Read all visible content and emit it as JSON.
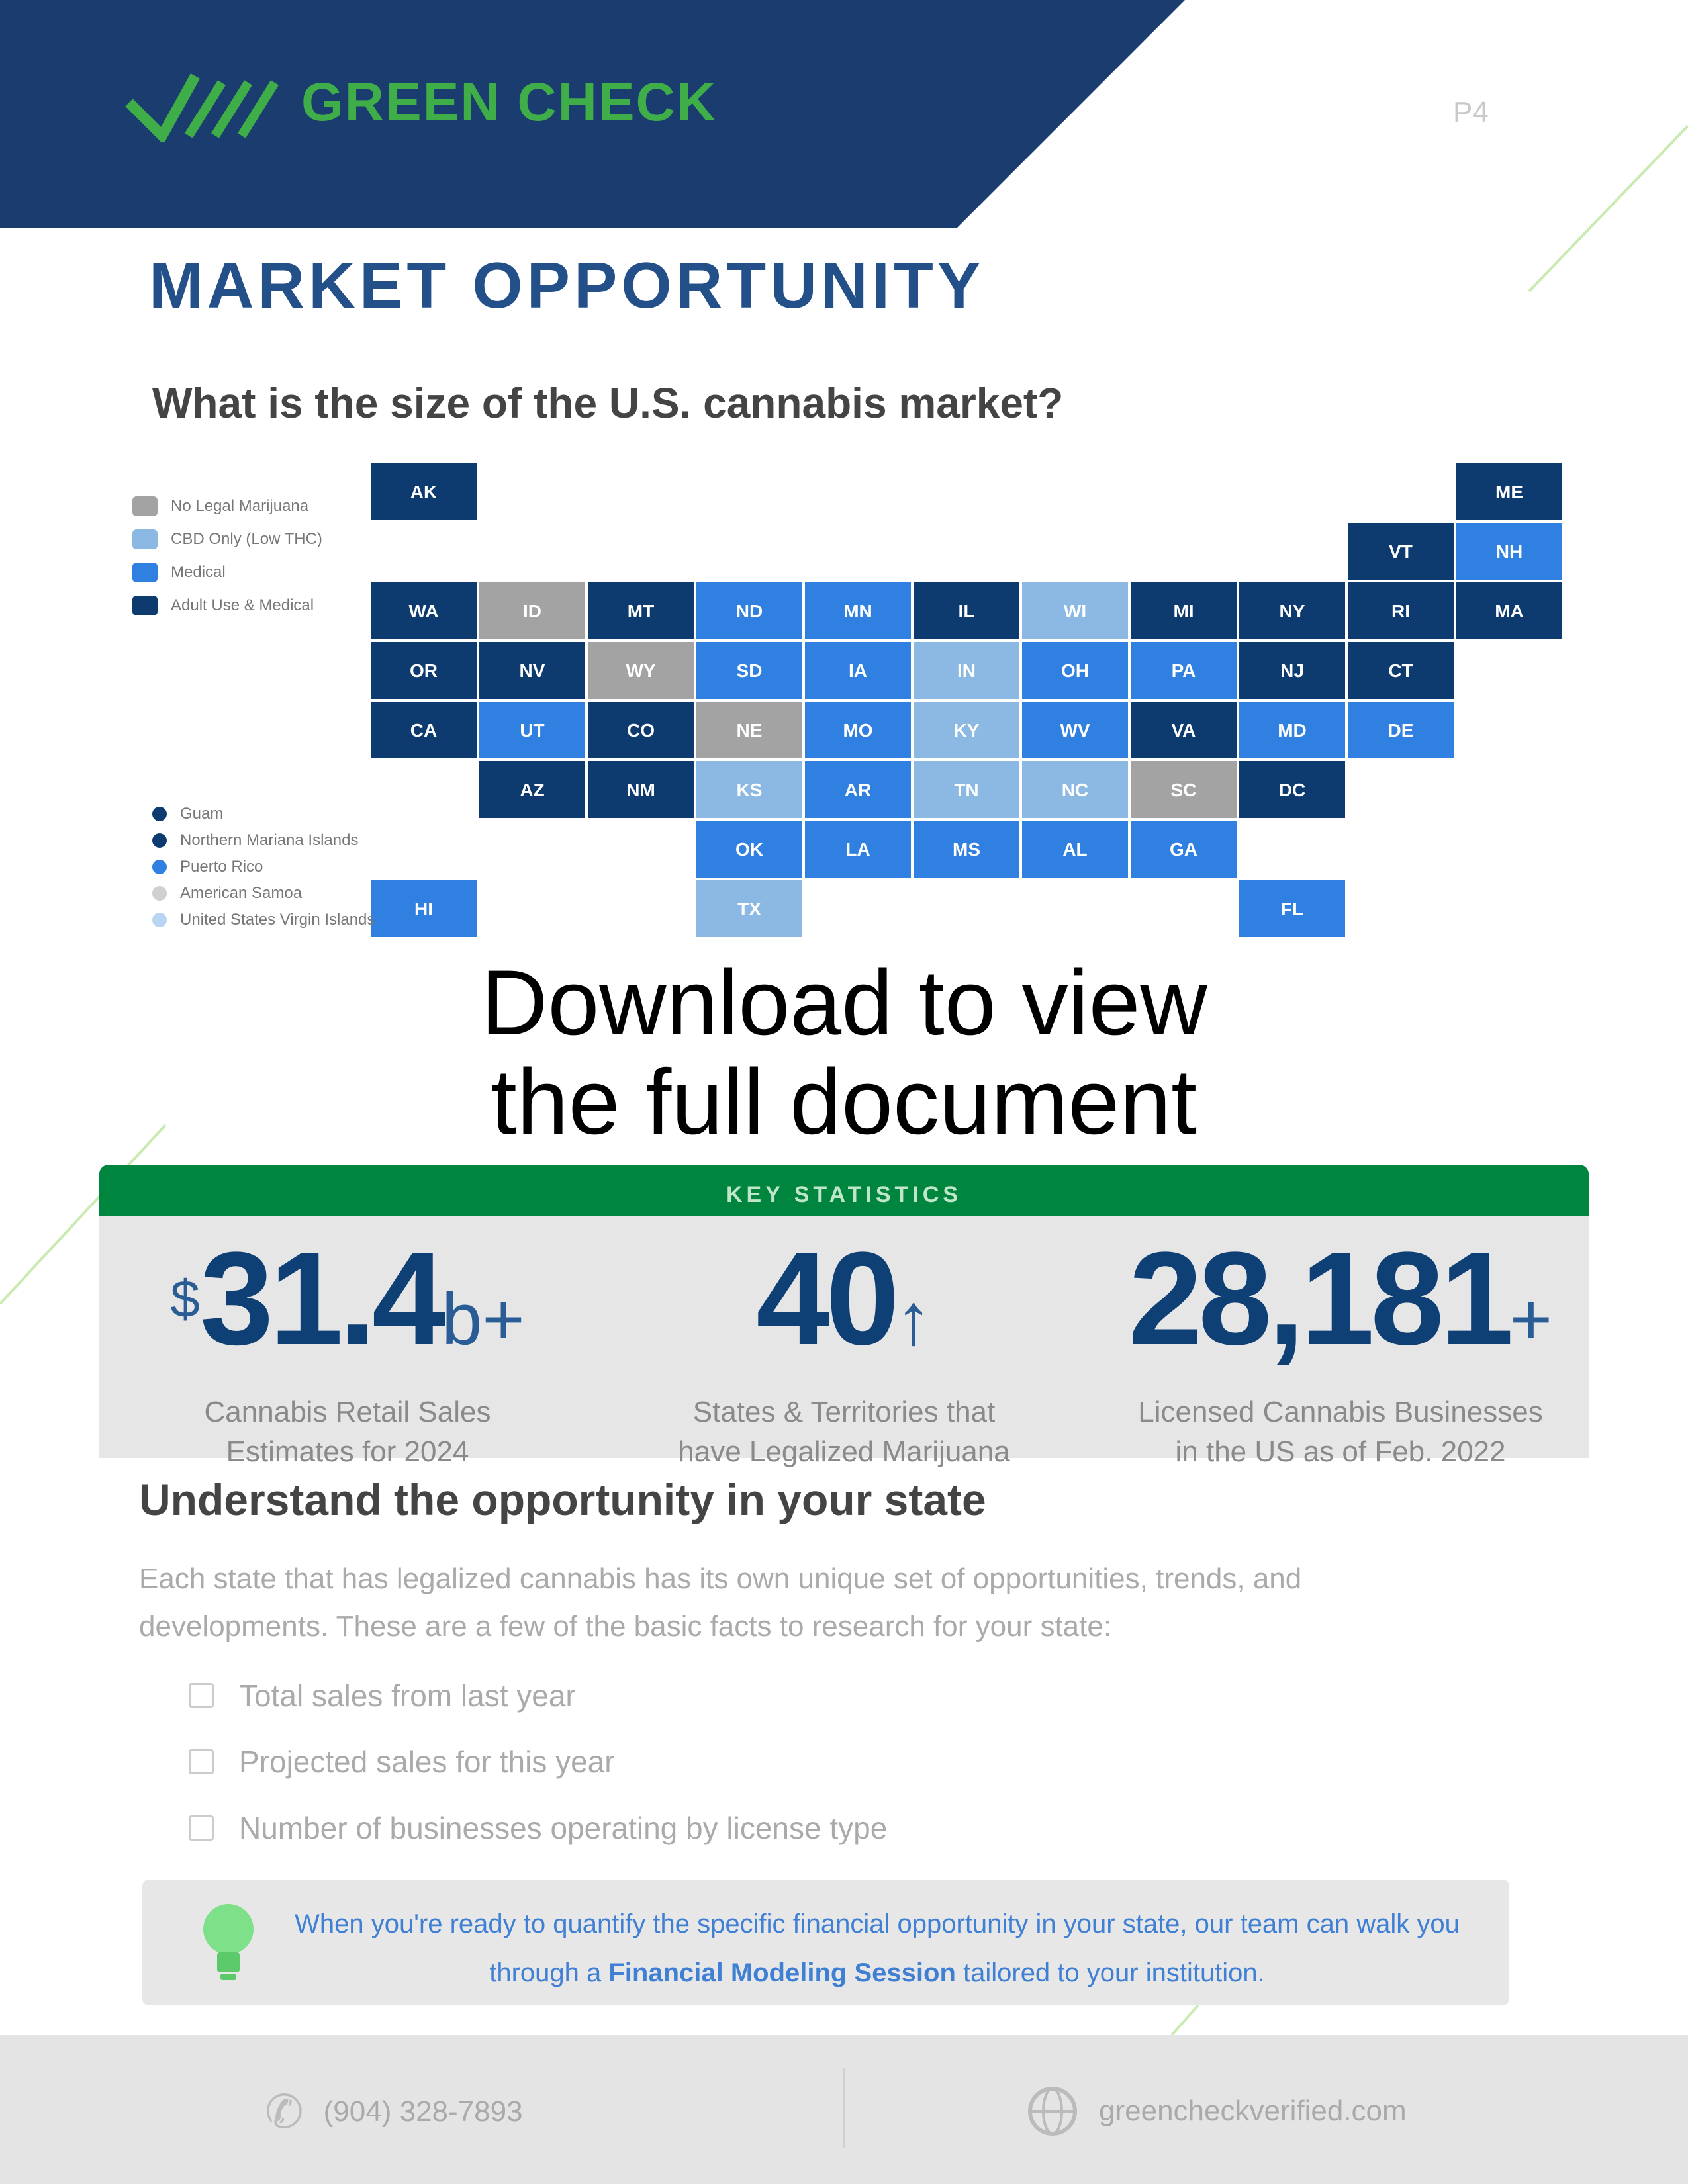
{
  "header": {
    "brand": "GREEN CHECK",
    "page": "P4"
  },
  "title": "MARKET OPPORTUNITY",
  "subtitle": "What is the size of the U.S. cannabis market?",
  "colors": {
    "navy": "#1b3c6e",
    "adult_use": "#0d3b70",
    "medical": "#2f80e0",
    "cbd": "#8cb8e4",
    "none": "#a3a3a3",
    "green": "#00853f",
    "accent_green": "#3fae49"
  },
  "map": {
    "legend": [
      {
        "label": "No Legal Marijuana",
        "status": "none"
      },
      {
        "label": "CBD Only (Low THC)",
        "status": "cbd"
      },
      {
        "label": "Medical",
        "status": "medical"
      },
      {
        "label": "Adult Use & Medical",
        "status": "adult_use"
      }
    ],
    "territories": [
      {
        "label": "Guam",
        "status": "adult_use"
      },
      {
        "label": "Northern Mariana Islands",
        "status": "adult_use"
      },
      {
        "label": "Puerto Rico",
        "status": "medical"
      },
      {
        "label": "American Samoa",
        "status": "none"
      },
      {
        "label": "United States Virgin Islands",
        "status": "cbd"
      }
    ],
    "states": [
      {
        "abbr": "AK",
        "status": "adult_use",
        "r": 0,
        "c": 0
      },
      {
        "abbr": "ME",
        "status": "adult_use",
        "r": 0,
        "c": 10
      },
      {
        "abbr": "VT",
        "status": "adult_use",
        "r": 1,
        "c": 9
      },
      {
        "abbr": "NH",
        "status": "medical",
        "r": 1,
        "c": 10
      },
      {
        "abbr": "WA",
        "status": "adult_use",
        "r": 2,
        "c": 0
      },
      {
        "abbr": "ID",
        "status": "none",
        "r": 2,
        "c": 1
      },
      {
        "abbr": "MT",
        "status": "adult_use",
        "r": 2,
        "c": 2
      },
      {
        "abbr": "ND",
        "status": "medical",
        "r": 2,
        "c": 3
      },
      {
        "abbr": "MN",
        "status": "medical",
        "r": 2,
        "c": 4
      },
      {
        "abbr": "IL",
        "status": "adult_use",
        "r": 2,
        "c": 5
      },
      {
        "abbr": "WI",
        "status": "cbd",
        "r": 2,
        "c": 6
      },
      {
        "abbr": "MI",
        "status": "adult_use",
        "r": 2,
        "c": 7
      },
      {
        "abbr": "NY",
        "status": "adult_use",
        "r": 2,
        "c": 8
      },
      {
        "abbr": "RI",
        "status": "adult_use",
        "r": 2,
        "c": 9
      },
      {
        "abbr": "MA",
        "status": "adult_use",
        "r": 2,
        "c": 10
      },
      {
        "abbr": "OR",
        "status": "adult_use",
        "r": 3,
        "c": 0
      },
      {
        "abbr": "NV",
        "status": "adult_use",
        "r": 3,
        "c": 1
      },
      {
        "abbr": "WY",
        "status": "none",
        "r": 3,
        "c": 2
      },
      {
        "abbr": "SD",
        "status": "medical",
        "r": 3,
        "c": 3
      },
      {
        "abbr": "IA",
        "status": "medical",
        "r": 3,
        "c": 4
      },
      {
        "abbr": "IN",
        "status": "cbd",
        "r": 3,
        "c": 5
      },
      {
        "abbr": "OH",
        "status": "medical",
        "r": 3,
        "c": 6
      },
      {
        "abbr": "PA",
        "status": "medical",
        "r": 3,
        "c": 7
      },
      {
        "abbr": "NJ",
        "status": "adult_use",
        "r": 3,
        "c": 8
      },
      {
        "abbr": "CT",
        "status": "adult_use",
        "r": 3,
        "c": 9
      },
      {
        "abbr": "CA",
        "status": "adult_use",
        "r": 4,
        "c": 0
      },
      {
        "abbr": "UT",
        "status": "medical",
        "r": 4,
        "c": 1
      },
      {
        "abbr": "CO",
        "status": "adult_use",
        "r": 4,
        "c": 2
      },
      {
        "abbr": "NE",
        "status": "none",
        "r": 4,
        "c": 3
      },
      {
        "abbr": "MO",
        "status": "medical",
        "r": 4,
        "c": 4
      },
      {
        "abbr": "KY",
        "status": "cbd",
        "r": 4,
        "c": 5
      },
      {
        "abbr": "WV",
        "status": "medical",
        "r": 4,
        "c": 6
      },
      {
        "abbr": "VA",
        "status": "adult_use",
        "r": 4,
        "c": 7
      },
      {
        "abbr": "MD",
        "status": "medical",
        "r": 4,
        "c": 8
      },
      {
        "abbr": "DE",
        "status": "medical",
        "r": 4,
        "c": 9
      },
      {
        "abbr": "AZ",
        "status": "adult_use",
        "r": 5,
        "c": 1
      },
      {
        "abbr": "NM",
        "status": "adult_use",
        "r": 5,
        "c": 2
      },
      {
        "abbr": "KS",
        "status": "cbd",
        "r": 5,
        "c": 3
      },
      {
        "abbr": "AR",
        "status": "medical",
        "r": 5,
        "c": 4
      },
      {
        "abbr": "TN",
        "status": "cbd",
        "r": 5,
        "c": 5
      },
      {
        "abbr": "NC",
        "status": "cbd",
        "r": 5,
        "c": 6
      },
      {
        "abbr": "SC",
        "status": "none",
        "r": 5,
        "c": 7
      },
      {
        "abbr": "DC",
        "status": "adult_use",
        "r": 5,
        "c": 8
      },
      {
        "abbr": "OK",
        "status": "medical",
        "r": 6,
        "c": 3
      },
      {
        "abbr": "LA",
        "status": "medical",
        "r": 6,
        "c": 4
      },
      {
        "abbr": "MS",
        "status": "medical",
        "r": 6,
        "c": 5
      },
      {
        "abbr": "AL",
        "status": "medical",
        "r": 6,
        "c": 6
      },
      {
        "abbr": "GA",
        "status": "medical",
        "r": 6,
        "c": 7
      },
      {
        "abbr": "HI",
        "status": "medical",
        "r": 7,
        "c": 0
      },
      {
        "abbr": "TX",
        "status": "cbd",
        "r": 7,
        "c": 3
      },
      {
        "abbr": "FL",
        "status": "medical",
        "r": 7,
        "c": 8
      }
    ]
  },
  "overlay": {
    "line1": "Download to view",
    "line2": "the full document"
  },
  "key_stats": {
    "label": "KEY STATISTICS",
    "items": [
      {
        "prefix": "$",
        "value": "31.4",
        "suffix": "b+",
        "caption1": "Cannabis Retail Sales",
        "caption2": "Estimates for 2024"
      },
      {
        "prefix": "",
        "value": "40",
        "suffix": "↑",
        "caption1": "States & Territories that",
        "caption2": "have Legalized Marijuana"
      },
      {
        "prefix": "",
        "value": "28,181",
        "suffix": "+",
        "caption1": "Licensed Cannabis Businesses",
        "caption2": "in the US as of Feb. 2022"
      }
    ]
  },
  "section": {
    "heading": "Understand the opportunity in your state",
    "paragraph": "Each state that has legalized cannabis has its own unique set of opportunities, trends, and developments. These are a few of the basic facts to research for your state:",
    "checklist": [
      "Total sales from last year",
      "Projected sales for this year",
      "Number of businesses operating by license type"
    ]
  },
  "callout": {
    "text_before": "When you're ready to quantify the specific financial opportunity in your state, our team can walk you through a ",
    "bold": "Financial Modeling Session",
    "text_after": " tailored to your institution."
  },
  "footer": {
    "phone": "(904) 328-7893",
    "website": "greencheckverified.com"
  }
}
